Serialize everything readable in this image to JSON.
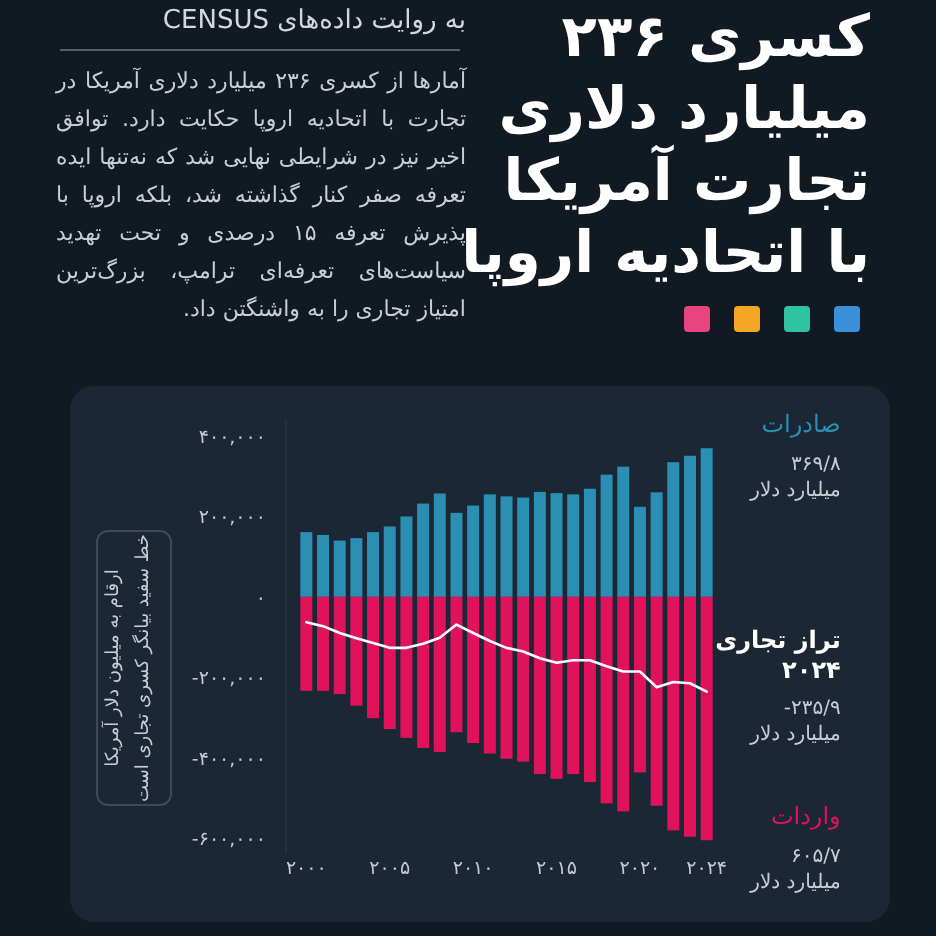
{
  "chart_data": {
    "type": "bar",
    "title": "کسری ۲۳۶ میلیارد دلاری تجارت آمریکا با اتحادیه اروپا",
    "subtitle": "به روایت داده‌های CENSUS",
    "ylabel": "ارقام به میلیون دلار آمریکا",
    "annotations": [
      "آمارها از کسری ۲۳۶ میلیارد دلاری آمریکا در تجارت با اتحادیه اروپا حکایت دارد. توافق اخیر نیز در شرایطی نهایی شد که نه‌تنها ایده تعرفه صفر کنار گذاشته شد، بلکه اروپا با پذیرش تعرفه ۱۵ درصدی و تحت تهدید سیاست‌های تعرفه‌ای ترامپ، بزرگ‌ترین امتیاز تجاری را به واشنگتن داد.",
      "خط سفید بیانگر کسری تجاری است",
      "۳۶۹/۸ میلیارد دلار",
      "۶۰۵/۷ میلیارد دلار",
      "-۲۳۵/۹ میلیارد دلار"
    ],
    "x": [
      2000,
      2001,
      2002,
      2003,
      2004,
      2005,
      2006,
      2007,
      2008,
      2009,
      2010,
      2011,
      2012,
      2013,
      2014,
      2015,
      2016,
      2017,
      2018,
      2019,
      2020,
      2021,
      2022,
      2023,
      2024
    ],
    "series": [
      {
        "name": "صادرات",
        "color": "#2b8fb4",
        "values": [
          161000,
          154000,
          140000,
          146000,
          161000,
          175000,
          200000,
          232000,
          257000,
          209000,
          227000,
          255000,
          250000,
          247000,
          261000,
          258000,
          255000,
          269000,
          304000,
          324000,
          224000,
          260000,
          335000,
          351000,
          369800
        ]
      },
      {
        "name": "واردات",
        "color": "#e0125b",
        "values": [
          -234000,
          -234000,
          -242000,
          -271000,
          -302000,
          -329000,
          -351000,
          -376000,
          -386000,
          -337000,
          -364000,
          -390000,
          -403000,
          -410000,
          -441000,
          -453000,
          -441000,
          -461000,
          -514000,
          -534000,
          -437000,
          -520000,
          -581000,
          -597000,
          -605700
        ]
      },
      {
        "name": "تراز تجاری ۲۰۲۴",
        "type": "line",
        "color": "#ffffff",
        "values": [
          -63000,
          -73000,
          -90000,
          -103000,
          -115000,
          -127000,
          -127000,
          -117000,
          -102000,
          -69000,
          -90000,
          -110000,
          -127000,
          -136000,
          -153000,
          -164000,
          -158000,
          -158000,
          -173000,
          -186000,
          -186000,
          -225000,
          -212000,
          -215000,
          -235900
        ]
      }
    ],
    "xlim": [
      1999.5,
      2024.5
    ],
    "ylim": [
      -640000,
      440000
    ],
    "xticks": [
      {
        "value": 2000,
        "label": "۲۰۰۰"
      },
      {
        "value": 2005,
        "label": "۲۰۰۵"
      },
      {
        "value": 2010,
        "label": "۲۰۱۰"
      },
      {
        "value": 2015,
        "label": "۲۰۱۵"
      },
      {
        "value": 2020,
        "label": "۲۰۲۰"
      },
      {
        "value": 2024,
        "label": "۲۰۲۴"
      }
    ],
    "yticks": [
      {
        "value": 400000,
        "label": "۴۰۰,۰۰۰"
      },
      {
        "value": 200000,
        "label": "۲۰۰,۰۰۰"
      },
      {
        "value": 0,
        "label": "۰"
      },
      {
        "value": -200000,
        "label": "-۲۰۰,۰۰۰"
      },
      {
        "value": -400000,
        "label": "-۴۰۰,۰۰۰"
      },
      {
        "value": -600000,
        "label": "-۶۰۰,۰۰۰"
      }
    ],
    "stacked": true,
    "grid": false
  }
}
